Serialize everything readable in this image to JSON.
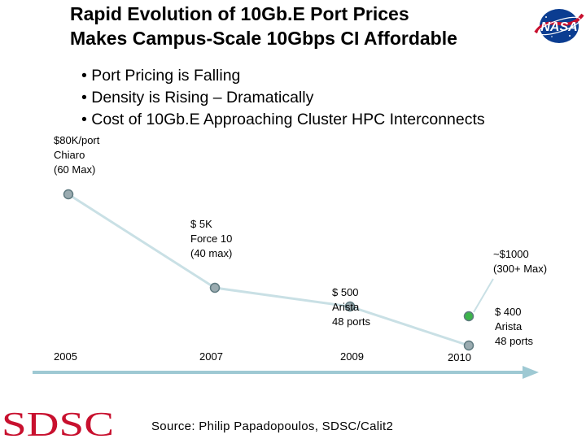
{
  "title_lines": [
    "Rapid Evolution of 10Gb.E Port Prices",
    "Makes Campus-Scale 10Gbps CI Affordable"
  ],
  "bullets": [
    "Port Pricing is Falling",
    "Density is Rising – Dramatically",
    "Cost of 10Gb.E Approaching Cluster HPC Interconnects"
  ],
  "source": "Source: Philip Papadopoulos, SDSC/Calit2",
  "logos": {
    "left": "NASA",
    "bottom": "SDSC"
  },
  "colors": {
    "line": "#c9e0e5",
    "marker_fill": "#9aabb0",
    "marker_stroke": "#5f7a80",
    "highlight_fill": "#3cb44a",
    "arrow": "#9ec9d3",
    "sdsc_red": "#c8102e",
    "nasa_blue": "#0b3d91"
  },
  "chart_data": {
    "type": "line",
    "x_axis": {
      "ticks": [
        "2005",
        "2007",
        "2009",
        "2010"
      ]
    },
    "series": [
      {
        "points": [
          {
            "x": "2005",
            "annotation": [
              "$80K/port",
              "Chiaro",
              "(60 Max)"
            ]
          },
          {
            "x": "2007",
            "annotation": [
              "$ 5K",
              "Force 10",
              "(40 max)"
            ]
          },
          {
            "x": "2009",
            "annotation": [
              "$ 500",
              "Arista",
              "48 ports"
            ]
          },
          {
            "x": "2010",
            "annotation": [
              "$ 400",
              "Arista",
              "48 ports"
            ]
          }
        ]
      }
    ],
    "highlight_point": {
      "x": "2010",
      "annotation": [
        "~$1000",
        "(300+ Max)"
      ]
    }
  }
}
